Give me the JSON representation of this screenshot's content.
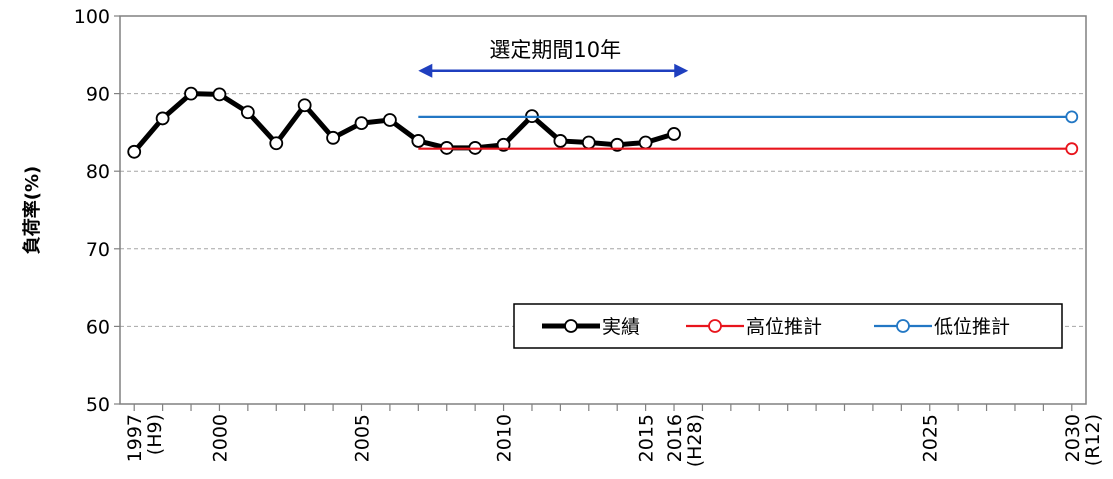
{
  "chart_data": {
    "type": "line",
    "title": "",
    "xlabel": "",
    "ylabel": "負荷率(%)",
    "ylim": [
      50,
      100
    ],
    "yticks": [
      50,
      60,
      70,
      80,
      90,
      100
    ],
    "xlim": [
      1996.5,
      2030.5
    ],
    "xtick_labels": [
      {
        "x": 1997,
        "label": "1997",
        "sub": "(H9)"
      },
      {
        "x": 2000,
        "label": "2000",
        "sub": ""
      },
      {
        "x": 2005,
        "label": "2005",
        "sub": ""
      },
      {
        "x": 2010,
        "label": "2010",
        "sub": ""
      },
      {
        "x": 2015,
        "label": "2015",
        "sub": ""
      },
      {
        "x": 2016,
        "label": "2016",
        "sub": "(H28)"
      },
      {
        "x": 2025,
        "label": "2025",
        "sub": ""
      },
      {
        "x": 2030,
        "label": "2030",
        "sub": "(R12)"
      }
    ],
    "grid": true,
    "legend_position": "bottom-right",
    "series": [
      {
        "name": "実績",
        "color": "#000000",
        "x": [
          1997,
          1998,
          1999,
          2000,
          2001,
          2002,
          2003,
          2004,
          2005,
          2006,
          2007,
          2008,
          2009,
          2010,
          2011,
          2012,
          2013,
          2014,
          2015,
          2016
        ],
        "values": [
          82.5,
          86.8,
          90.0,
          89.9,
          87.6,
          83.6,
          88.5,
          84.3,
          86.2,
          86.6,
          83.9,
          83.0,
          83.0,
          83.4,
          87.1,
          83.9,
          83.7,
          83.4,
          83.7,
          84.8
        ]
      },
      {
        "name": "高位推計",
        "color": "#e8141c",
        "x": [
          2007,
          2030
        ],
        "values": [
          82.9,
          82.9
        ],
        "marker_at": [
          2030
        ]
      },
      {
        "name": "低位推計",
        "color": "#2277c4",
        "x": [
          2007,
          2030
        ],
        "values": [
          87.0,
          87.0
        ],
        "marker_at": [
          2030
        ]
      }
    ],
    "annotation": {
      "text": "選定期間10年",
      "x_start": 2007,
      "x_end": 2016.5,
      "y": 95,
      "color": "#1f3fbf"
    }
  }
}
